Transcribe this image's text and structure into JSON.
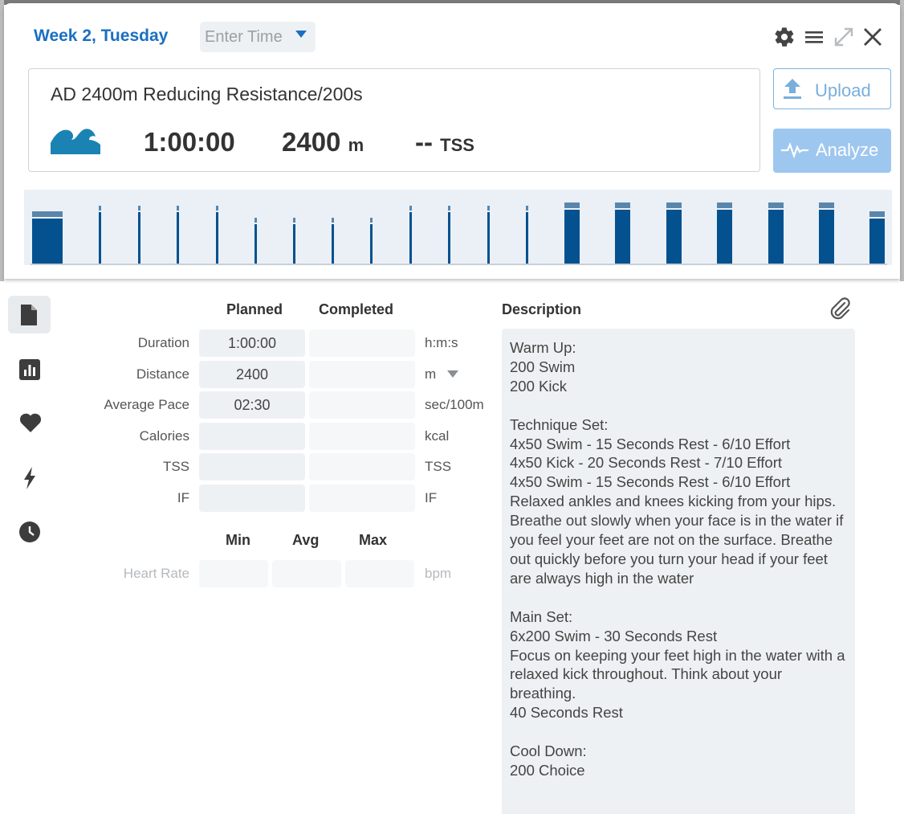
{
  "header": {
    "day_title": "Week 2, Tuesday",
    "time_placeholder": "Enter Time",
    "icons": [
      "gear-icon",
      "menu-icon",
      "expand-icon",
      "close-icon"
    ]
  },
  "summary": {
    "title": "AD 2400m Reducing Resistance/200s",
    "sport_icon": "swim-wave-icon",
    "duration": "1:00:00",
    "distance": "2400",
    "distance_unit": "m",
    "tss_value": "--",
    "tss_label": "TSS"
  },
  "actions": {
    "upload_label": "Upload",
    "analyze_label": "Analyze"
  },
  "colors": {
    "accent": "#1a6fc2",
    "bar": "#04518f",
    "bar_cap": "#5b86ab",
    "chart_bg": "#eaf0f6",
    "analyze_bg": "#9ec7ef"
  },
  "chart_data": {
    "type": "bar",
    "description": "workout structure intervals",
    "intervals": [
      {
        "kind": "wide",
        "intensity": 0.85
      },
      {
        "kind": "thin",
        "intensity": 0.95
      },
      {
        "kind": "thin",
        "intensity": 0.95
      },
      {
        "kind": "thin",
        "intensity": 0.95
      },
      {
        "kind": "thin",
        "intensity": 0.95
      },
      {
        "kind": "thin",
        "intensity": 0.75
      },
      {
        "kind": "thin",
        "intensity": 0.75
      },
      {
        "kind": "thin",
        "intensity": 0.75
      },
      {
        "kind": "thin",
        "intensity": 0.75
      },
      {
        "kind": "thin",
        "intensity": 0.95
      },
      {
        "kind": "thin",
        "intensity": 0.95
      },
      {
        "kind": "thin",
        "intensity": 0.95
      },
      {
        "kind": "thin",
        "intensity": 0.95
      },
      {
        "kind": "wide",
        "intensity": 1.0
      },
      {
        "kind": "wide",
        "intensity": 1.0
      },
      {
        "kind": "wide",
        "intensity": 1.0
      },
      {
        "kind": "wide",
        "intensity": 1.0
      },
      {
        "kind": "wide",
        "intensity": 1.0
      },
      {
        "kind": "wide",
        "intensity": 1.0
      },
      {
        "kind": "wide",
        "intensity": 0.85
      }
    ]
  },
  "sidebar": {
    "items": [
      {
        "name": "document-icon",
        "active": true
      },
      {
        "name": "bar-chart-icon",
        "active": false
      },
      {
        "name": "heart-icon",
        "active": false
      },
      {
        "name": "lightning-icon",
        "active": false
      },
      {
        "name": "clock-icon",
        "active": false
      }
    ]
  },
  "metrics_table": {
    "planned_header": "Planned",
    "completed_header": "Completed",
    "rows": [
      {
        "label": "Duration",
        "planned": "1:00:00",
        "completed": "",
        "unit": "h:m:s"
      },
      {
        "label": "Distance",
        "planned": "2400",
        "completed": "",
        "unit": "m"
      },
      {
        "label": "Average Pace",
        "planned": "02:30",
        "completed": "",
        "unit": "sec/100m"
      },
      {
        "label": "Calories",
        "planned": "",
        "completed": "",
        "unit": "kcal"
      },
      {
        "label": "TSS",
        "planned": "",
        "completed": "",
        "unit": "TSS"
      },
      {
        "label": "IF",
        "planned": "",
        "completed": "",
        "unit": "IF"
      }
    ]
  },
  "heart_rate": {
    "min_header": "Min",
    "avg_header": "Avg",
    "max_header": "Max",
    "label": "Heart Rate",
    "unit": "bpm"
  },
  "description": {
    "header": "Description",
    "text": "Warm Up:\n200 Swim\n200 Kick\n\nTechnique Set:\n4x50 Swim - 15 Seconds Rest - 6/10 Effort\n4x50 Kick - 20 Seconds Rest - 7/10 Effort\n4x50 Swim - 15 Seconds Rest - 6/10 Effort\nRelaxed ankles and knees kicking from your hips. Breathe out slowly when your face is in the water if you feel your feet are not on the surface. Breathe out quickly before you turn your head if your feet are always high in the water\n\nMain Set:\n6x200 Swim - 30 Seconds Rest\nFocus on keeping your feet high in the water with a relaxed kick throughout. Think about your breathing.\n40 Seconds Rest\n\nCool Down:\n200 Choice"
  }
}
